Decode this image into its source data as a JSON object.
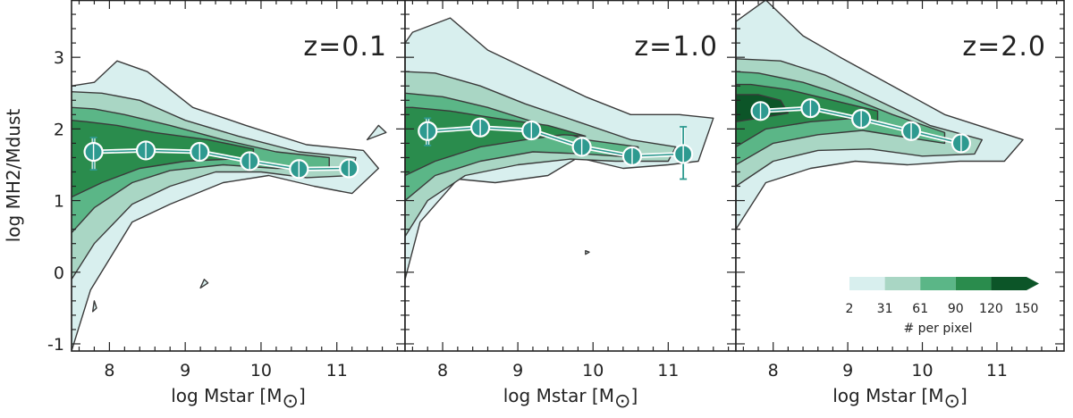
{
  "chart_data": {
    "type": "contour",
    "ylabel": "log MH2/Mdust",
    "xlabel_prefix": "log Mstar [M",
    "xlabel_suffix": "]",
    "xlim": [
      7.5,
      11.9
    ],
    "ylim": [
      -1.1,
      3.8
    ],
    "xticks": [
      8,
      9,
      10,
      11
    ],
    "yticks": [
      -1,
      0,
      1,
      2,
      3
    ],
    "contour_levels": [
      2,
      31,
      61,
      90,
      120,
      150
    ],
    "level_colors": [
      "#d8efee",
      "#a9d6c4",
      "#5bb687",
      "#2a8c4d",
      "#0c5528"
    ],
    "median_color": "#2e9a90",
    "colorbar": {
      "ticks": [
        "2",
        "31",
        "61",
        "90",
        "120",
        "150"
      ],
      "label": "# per pixel"
    },
    "panels": [
      {
        "title": "z=0.1",
        "median_x": [
          7.79,
          8.48,
          9.19,
          9.85,
          10.5,
          11.16
        ],
        "median_y": [
          1.68,
          1.7,
          1.68,
          1.55,
          1.44,
          1.45
        ],
        "error_low": [
          0.25,
          0.12,
          0.12,
          0.12,
          0.1,
          0.05
        ],
        "error_high": [
          0.2,
          0.12,
          0.12,
          0.12,
          0.1,
          0.05
        ],
        "regions": [
          {
            "level": 1,
            "points": [
              [
                7.5,
                -1.1
              ],
              [
                7.75,
                -0.25
              ],
              [
                8.3,
                0.7
              ],
              [
                8.8,
                0.95
              ],
              [
                9.5,
                1.25
              ],
              [
                10.1,
                1.35
              ],
              [
                10.7,
                1.2
              ],
              [
                11.2,
                1.1
              ],
              [
                11.55,
                1.45
              ],
              [
                11.35,
                1.7
              ],
              [
                10.6,
                1.78
              ],
              [
                9.8,
                2.05
              ],
              [
                9.1,
                2.3
              ],
              [
                8.5,
                2.8
              ],
              [
                8.1,
                2.95
              ],
              [
                7.8,
                2.65
              ],
              [
                7.5,
                2.6
              ]
            ]
          },
          {
            "level": 2,
            "points": [
              [
                7.5,
                -0.1
              ],
              [
                7.8,
                0.4
              ],
              [
                8.3,
                0.95
              ],
              [
                8.8,
                1.2
              ],
              [
                9.4,
                1.4
              ],
              [
                10.0,
                1.4
              ],
              [
                10.6,
                1.32
              ],
              [
                11.2,
                1.35
              ],
              [
                11.25,
                1.6
              ],
              [
                10.5,
                1.68
              ],
              [
                9.7,
                1.9
              ],
              [
                9.0,
                2.12
              ],
              [
                8.4,
                2.4
              ],
              [
                7.9,
                2.5
              ],
              [
                7.5,
                2.52
              ]
            ]
          },
          {
            "level": 3,
            "points": [
              [
                7.5,
                0.55
              ],
              [
                7.8,
                0.9
              ],
              [
                8.3,
                1.25
              ],
              [
                8.8,
                1.42
              ],
              [
                9.5,
                1.5
              ],
              [
                10.2,
                1.45
              ],
              [
                10.9,
                1.45
              ],
              [
                10.9,
                1.6
              ],
              [
                10.2,
                1.68
              ],
              [
                9.5,
                1.85
              ],
              [
                8.8,
                2.05
              ],
              [
                8.2,
                2.2
              ],
              [
                7.8,
                2.28
              ],
              [
                7.5,
                2.3
              ]
            ]
          },
          {
            "level": 4,
            "points": [
              [
                7.5,
                1.05
              ],
              [
                7.9,
                1.25
              ],
              [
                8.4,
                1.45
              ],
              [
                9.0,
                1.55
              ],
              [
                9.6,
                1.58
              ],
              [
                9.9,
                1.55
              ],
              [
                9.9,
                1.72
              ],
              [
                9.3,
                1.85
              ],
              [
                8.6,
                1.95
              ],
              [
                8.1,
                2.05
              ],
              [
                7.7,
                2.1
              ],
              [
                7.5,
                2.12
              ]
            ]
          },
          {
            "level": 1,
            "points": [
              [
                9.2,
                -0.22
              ],
              [
                9.3,
                -0.15
              ],
              [
                9.25,
                -0.1
              ]
            ]
          },
          {
            "level": 1,
            "points": [
              [
                7.78,
                -0.55
              ],
              [
                7.83,
                -0.5
              ],
              [
                7.8,
                -0.4
              ]
            ]
          },
          {
            "level": 1,
            "points": [
              [
                11.4,
                1.85
              ],
              [
                11.65,
                1.95
              ],
              [
                11.55,
                2.05
              ]
            ]
          }
        ]
      },
      {
        "title": "z=1.0",
        "median_x": [
          7.8,
          8.5,
          9.18,
          9.85,
          10.52,
          11.2
        ],
        "median_y": [
          1.97,
          2.02,
          1.98,
          1.75,
          1.62,
          1.65
        ],
        "error_low": [
          0.2,
          0.12,
          0.1,
          0.12,
          0.1,
          0.35
        ],
        "error_high": [
          0.18,
          0.12,
          0.1,
          0.12,
          0.1,
          0.38
        ],
        "regions": [
          {
            "level": 1,
            "points": [
              [
                7.5,
                -0.1
              ],
              [
                7.7,
                0.7
              ],
              [
                8.2,
                1.3
              ],
              [
                8.7,
                1.25
              ],
              [
                9.4,
                1.35
              ],
              [
                9.8,
                1.6
              ],
              [
                10.4,
                1.45
              ],
              [
                11.0,
                1.5
              ],
              [
                11.4,
                1.55
              ],
              [
                11.6,
                2.15
              ],
              [
                11.15,
                2.2
              ],
              [
                10.5,
                2.2
              ],
              [
                9.9,
                2.45
              ],
              [
                9.2,
                2.8
              ],
              [
                8.6,
                3.1
              ],
              [
                8.1,
                3.55
              ],
              [
                7.6,
                3.35
              ],
              [
                7.5,
                3.2
              ]
            ]
          },
          {
            "level": 2,
            "points": [
              [
                7.5,
                0.5
              ],
              [
                7.8,
                1.0
              ],
              [
                8.3,
                1.35
              ],
              [
                9.0,
                1.5
              ],
              [
                9.7,
                1.58
              ],
              [
                10.3,
                1.55
              ],
              [
                11.0,
                1.55
              ],
              [
                11.1,
                1.75
              ],
              [
                10.5,
                1.85
              ],
              [
                9.8,
                2.1
              ],
              [
                9.1,
                2.35
              ],
              [
                8.5,
                2.6
              ],
              [
                7.9,
                2.78
              ],
              [
                7.5,
                2.8
              ]
            ]
          },
          {
            "level": 3,
            "points": [
              [
                7.5,
                1.0
              ],
              [
                7.9,
                1.35
              ],
              [
                8.5,
                1.55
              ],
              [
                9.2,
                1.68
              ],
              [
                9.9,
                1.65
              ],
              [
                10.6,
                1.6
              ],
              [
                10.6,
                1.75
              ],
              [
                9.9,
                1.85
              ],
              [
                9.2,
                2.1
              ],
              [
                8.6,
                2.3
              ],
              [
                8.0,
                2.45
              ],
              [
                7.5,
                2.5
              ]
            ]
          },
          {
            "level": 4,
            "points": [
              [
                7.5,
                1.35
              ],
              [
                7.9,
                1.55
              ],
              [
                8.5,
                1.75
              ],
              [
                9.1,
                1.85
              ],
              [
                9.6,
                1.92
              ],
              [
                9.9,
                1.9
              ],
              [
                9.4,
                2.05
              ],
              [
                8.7,
                2.15
              ],
              [
                8.1,
                2.25
              ],
              [
                7.6,
                2.3
              ],
              [
                7.5,
                2.3
              ]
            ]
          },
          {
            "level": 1,
            "points": [
              [
                9.9,
                0.25
              ],
              [
                9.95,
                0.28
              ],
              [
                9.9,
                0.3
              ]
            ]
          }
        ]
      },
      {
        "title": "z=2.0",
        "median_x": [
          7.83,
          8.5,
          9.18,
          9.85,
          10.52
        ],
        "median_y": [
          2.25,
          2.29,
          2.14,
          1.97,
          1.8
        ],
        "error_low": [
          0.12,
          0.12,
          0.1,
          0.1,
          0.08
        ],
        "error_high": [
          0.12,
          0.12,
          0.1,
          0.1,
          0.08
        ],
        "regions": [
          {
            "level": 1,
            "points": [
              [
                7.5,
                0.6
              ],
              [
                7.9,
                1.25
              ],
              [
                8.5,
                1.45
              ],
              [
                9.1,
                1.55
              ],
              [
                9.8,
                1.5
              ],
              [
                10.5,
                1.55
              ],
              [
                11.1,
                1.55
              ],
              [
                11.35,
                1.85
              ],
              [
                10.9,
                2.0
              ],
              [
                10.3,
                2.2
              ],
              [
                9.6,
                2.6
              ],
              [
                8.9,
                3.0
              ],
              [
                8.4,
                3.3
              ],
              [
                7.9,
                3.8
              ],
              [
                7.5,
                3.5
              ]
            ]
          },
          {
            "level": 2,
            "points": [
              [
                7.5,
                1.2
              ],
              [
                8.0,
                1.55
              ],
              [
                8.6,
                1.7
              ],
              [
                9.3,
                1.72
              ],
              [
                10.0,
                1.62
              ],
              [
                10.7,
                1.65
              ],
              [
                10.8,
                1.85
              ],
              [
                10.1,
                2.05
              ],
              [
                9.4,
                2.4
              ],
              [
                8.7,
                2.75
              ],
              [
                8.1,
                2.95
              ],
              [
                7.5,
                2.98
              ]
            ]
          },
          {
            "level": 3,
            "points": [
              [
                7.5,
                1.5
              ],
              [
                8.0,
                1.8
              ],
              [
                8.6,
                1.92
              ],
              [
                9.2,
                1.98
              ],
              [
                9.8,
                1.88
              ],
              [
                10.3,
                1.8
              ],
              [
                10.3,
                1.95
              ],
              [
                9.6,
                2.2
              ],
              [
                9.0,
                2.45
              ],
              [
                8.4,
                2.65
              ],
              [
                7.8,
                2.78
              ],
              [
                7.5,
                2.8
              ]
            ]
          },
          {
            "level": 4,
            "points": [
              [
                7.5,
                1.75
              ],
              [
                7.9,
                2.0
              ],
              [
                8.5,
                2.1
              ],
              [
                9.1,
                2.15
              ],
              [
                9.4,
                2.1
              ],
              [
                9.4,
                2.25
              ],
              [
                8.8,
                2.4
              ],
              [
                8.2,
                2.55
              ],
              [
                7.7,
                2.62
              ],
              [
                7.5,
                2.62
              ]
            ]
          },
          {
            "level": 5,
            "points": [
              [
                7.5,
                2.1
              ],
              [
                7.8,
                2.15
              ],
              [
                8.2,
                2.22
              ],
              [
                8.1,
                2.4
              ],
              [
                7.8,
                2.48
              ],
              [
                7.5,
                2.48
              ]
            ]
          }
        ]
      }
    ]
  }
}
